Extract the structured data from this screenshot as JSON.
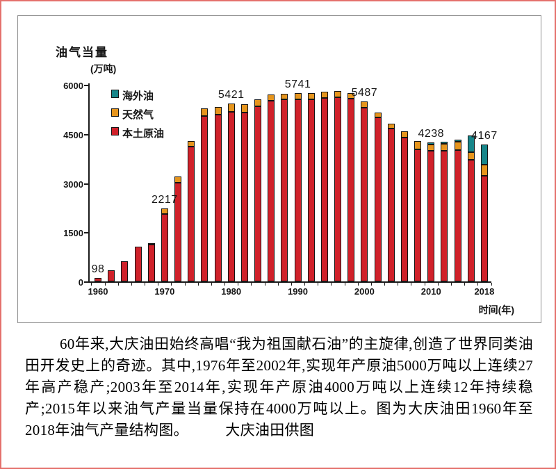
{
  "chart_data": {
    "type": "bar",
    "stacked": true,
    "title": "油气当量",
    "unit": "(万吨)",
    "xlabel": "时间(年)",
    "ylim": [
      0,
      6000
    ],
    "yticks": [
      0,
      1500,
      3000,
      4500,
      6000
    ],
    "xticks": [
      1960,
      1970,
      1980,
      1990,
      2000,
      2010,
      2018
    ],
    "grid": false,
    "legend_position": "top-left-inside",
    "categories": [
      1960,
      1962,
      1964,
      1966,
      1968,
      1970,
      1972,
      1974,
      1976,
      1978,
      1980,
      1982,
      1984,
      1986,
      1988,
      1990,
      1992,
      1994,
      1996,
      1998,
      2000,
      2002,
      2004,
      2006,
      2008,
      2010,
      2012,
      2014,
      2016,
      2018
    ],
    "series": [
      {
        "name": "本土原油",
        "color": "#d0212a",
        "values": [
          98,
          330,
          610,
          1070,
          1130,
          2050,
          3020,
          4110,
          5040,
          5080,
          5180,
          5160,
          5350,
          5520,
          5550,
          5561,
          5560,
          5600,
          5610,
          5580,
          5300,
          5000,
          4665,
          4395,
          4030,
          3980,
          3990,
          4010,
          3715,
          3220
        ]
      },
      {
        "name": "天然气",
        "color": "#e6951d",
        "values": [
          0,
          0,
          0,
          0,
          45,
          167,
          190,
          175,
          230,
          250,
          241,
          240,
          210,
          180,
          180,
          180,
          180,
          190,
          190,
          175,
          187,
          160,
          140,
          195,
          245,
          200,
          215,
          245,
          225,
          350
        ]
      },
      {
        "name": "海外油",
        "color": "#17868a",
        "values": [
          0,
          0,
          0,
          0,
          0,
          0,
          0,
          0,
          0,
          0,
          0,
          0,
          0,
          0,
          0,
          0,
          0,
          0,
          0,
          0,
          0,
          0,
          0,
          0,
          0,
          58,
          65,
          75,
          515,
          597
        ]
      }
    ],
    "legend": [
      {
        "label": "海外油",
        "color": "#17868a"
      },
      {
        "label": "天然气",
        "color": "#e6951d"
      },
      {
        "label": "本土原油",
        "color": "#d0212a"
      }
    ],
    "point_labels": [
      {
        "year": 1960,
        "text": "98"
      },
      {
        "year": 1970,
        "text": "2217"
      },
      {
        "year": 1980,
        "text": "5421"
      },
      {
        "year": 1990,
        "text": "5741"
      },
      {
        "year": 2000,
        "text": "5487"
      },
      {
        "year": 2010,
        "text": "4238"
      },
      {
        "year": 2018,
        "text": "4167"
      }
    ]
  },
  "caption": {
    "text": "60年来,大庆油田始终高唱“我为祖国献石油”的主旋律,创造了世界同类油田开发史上的奇迹。其中,1976年至2002年,实现年产原油5000万吨以上连续27年高产稳产;2003年至2014年,实现年产原油4000万吨以上连续12年持续稳产;2015年以来油气产量当量保持在4000万吨以上。图为大庆油田1960年至2018年油气产量结构图。　　　大庆油田供图"
  },
  "colors": {
    "page_border": "#e4716d",
    "chart_box_border": "#8e8e8e",
    "axis": "#1a1a1a",
    "domestic_crude": "#d0212a",
    "natural_gas": "#e6951d",
    "overseas_oil": "#17868a"
  }
}
